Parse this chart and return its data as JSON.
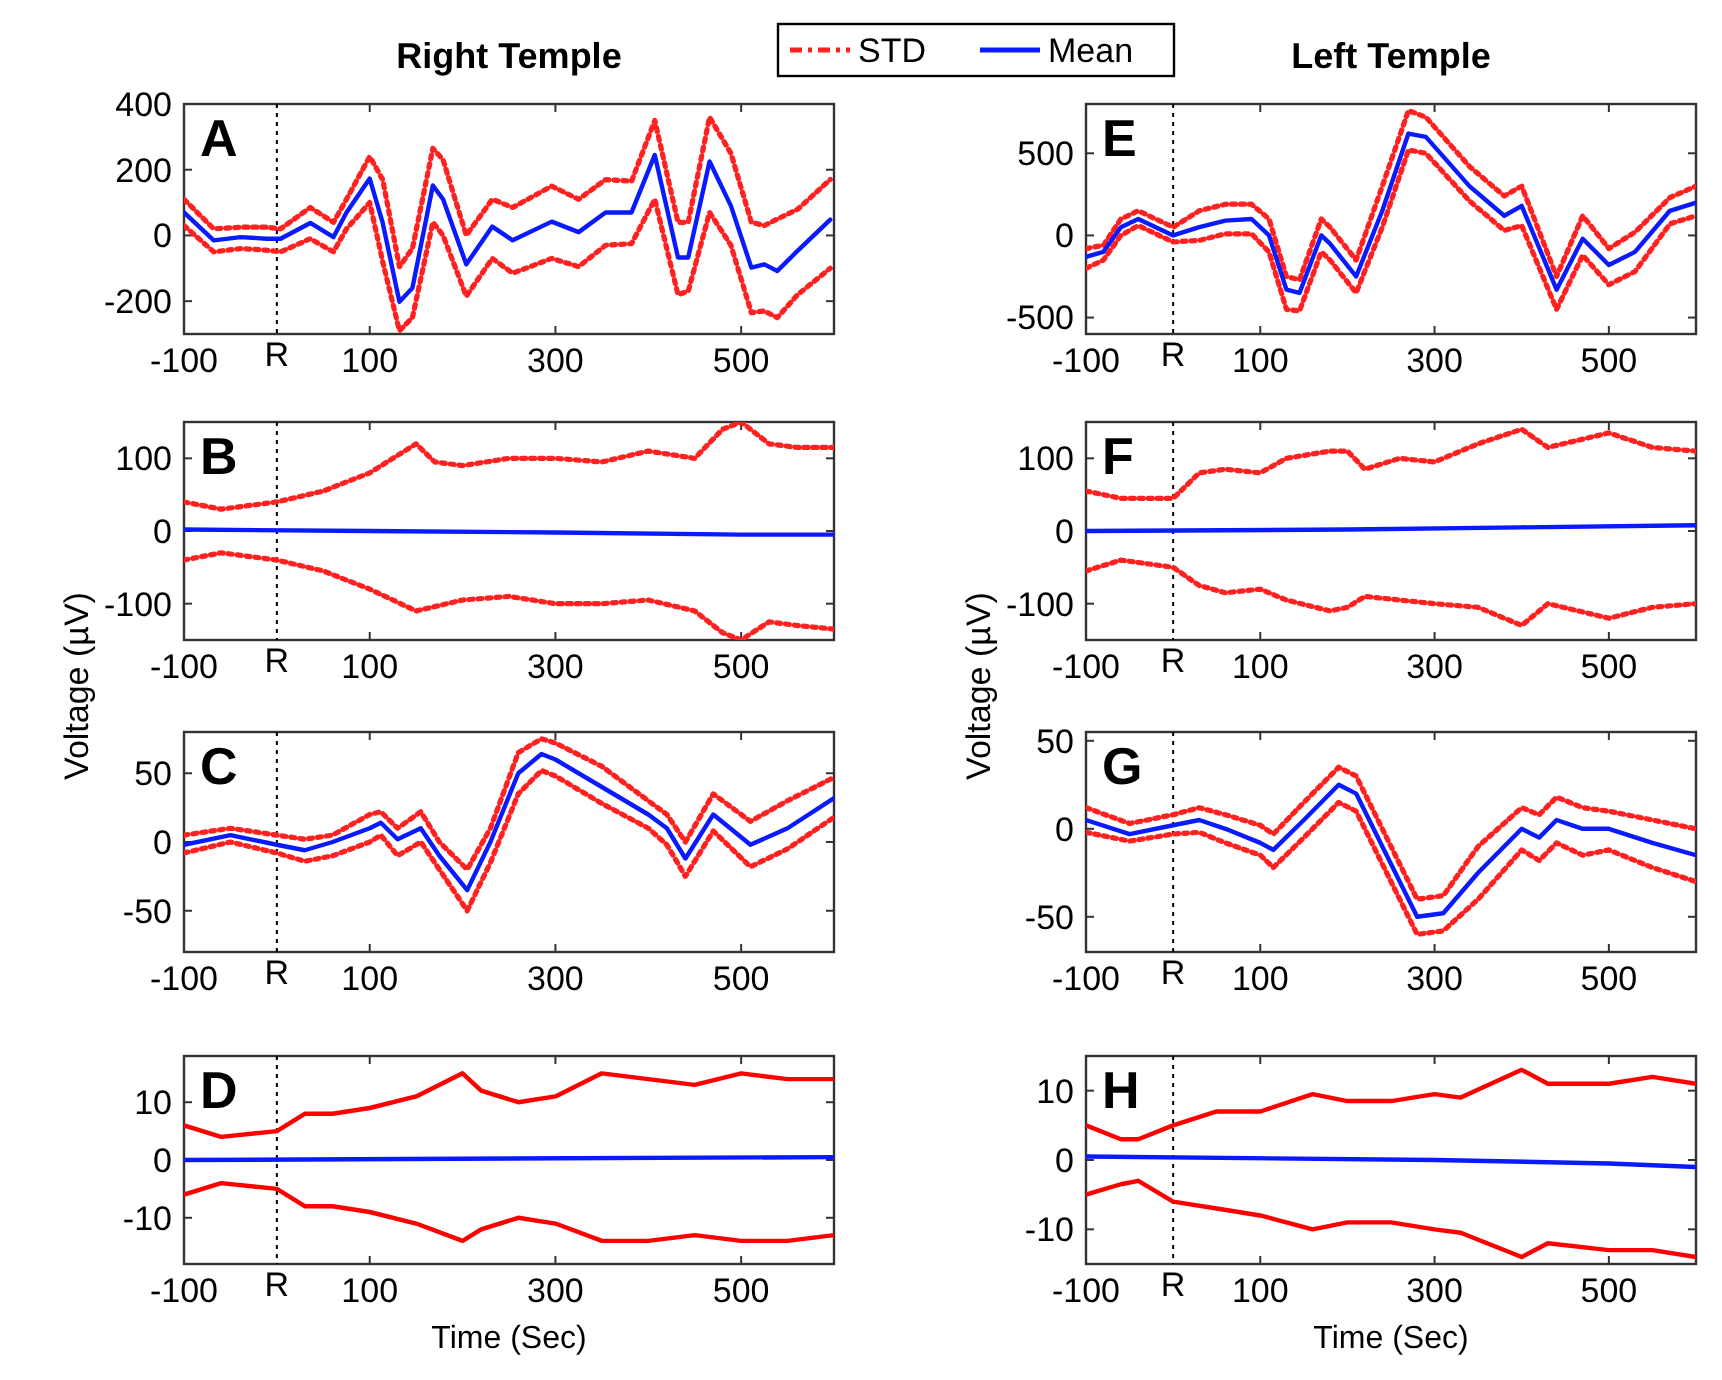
{
  "chart_data": [
    {
      "type": "line",
      "title": "Right Temple",
      "annotations": [
        "A"
      ],
      "legend": "top",
      "xlim": [
        -100,
        600
      ],
      "xticks": [
        -100,
        100,
        300,
        500
      ],
      "ylim": [
        -300,
        400
      ],
      "yticks": [
        -200,
        0,
        200,
        400
      ],
      "ref_lines": [
        {
          "axis": "x",
          "value": 0,
          "label": "R",
          "color": "#000000",
          "line_style": "dotted"
        }
      ],
      "series": [
        {
          "name": "STD",
          "color": "#ff2020",
          "line_style": "dotted",
          "x": [
            -100,
            -68,
            -39,
            -11,
            4,
            36,
            61,
            75,
            100,
            114,
            132,
            146,
            168,
            179,
            204,
            232,
            254,
            296,
            325,
            354,
            382,
            407,
            432,
            443,
            466,
            489,
            511,
            525,
            539,
            561,
            596
          ],
          "values": [
            110,
            20,
            25,
            25,
            20,
            85,
            40,
            110,
            240,
            170,
            -95,
            -40,
            265,
            230,
            0,
            110,
            85,
            150,
            110,
            170,
            165,
            350,
            40,
            40,
            360,
            250,
            40,
            30,
            50,
            80,
            170
          ]
        },
        {
          "name": "Mean",
          "color": "#0a1aff",
          "line_style": "solid",
          "x": [
            -100,
            -68,
            -39,
            -11,
            4,
            36,
            61,
            75,
            100,
            114,
            132,
            146,
            168,
            179,
            204,
            232,
            254,
            296,
            325,
            354,
            382,
            407,
            432,
            443,
            466,
            489,
            511,
            525,
            539,
            561,
            596
          ],
          "values": [
            70,
            -15,
            -5,
            -10,
            -10,
            38,
            -5,
            70,
            173,
            38,
            -202,
            -160,
            152,
            110,
            -88,
            27,
            -15,
            42,
            10,
            70,
            70,
            245,
            -67,
            -67,
            225,
            90,
            -98,
            -88,
            -108,
            -46,
            48
          ]
        },
        {
          "color": "#ff2020",
          "line_style": "dotted",
          "x": [
            -100,
            -68,
            -39,
            -11,
            4,
            36,
            61,
            75,
            100,
            114,
            132,
            146,
            168,
            179,
            204,
            232,
            254,
            296,
            325,
            354,
            382,
            407,
            432,
            443,
            466,
            489,
            511,
            525,
            539,
            561,
            596
          ],
          "values": [
            30,
            -50,
            -40,
            -45,
            -50,
            -10,
            -50,
            20,
            100,
            -80,
            -290,
            -250,
            40,
            0,
            -185,
            -70,
            -115,
            -70,
            -95,
            -30,
            -25,
            110,
            -180,
            -170,
            70,
            -30,
            -235,
            -230,
            -250,
            -180,
            -100
          ]
        }
      ]
    },
    {
      "type": "line",
      "annotations": [
        "B"
      ],
      "ylabel": "Voltage (µV)",
      "xlim": [
        -100,
        600
      ],
      "xticks": [
        -100,
        100,
        300,
        500
      ],
      "ylim": [
        -150,
        150
      ],
      "yticks": [
        -100,
        0,
        100
      ],
      "ref_lines": [
        {
          "axis": "x",
          "value": 0,
          "label": "R",
          "color": "#000000",
          "line_style": "dotted"
        }
      ],
      "series": [
        {
          "color": "#ff2020",
          "line_style": "dotted",
          "x": [
            -100,
            -60,
            0,
            50,
            100,
            150,
            170,
            200,
            250,
            300,
            350,
            400,
            450,
            480,
            500,
            530,
            560,
            600
          ],
          "values": [
            40,
            30,
            40,
            55,
            80,
            120,
            95,
            90,
            100,
            100,
            95,
            110,
            100,
            140,
            150,
            120,
            115,
            115
          ]
        },
        {
          "color": "#0a1aff",
          "line_style": "solid",
          "x": [
            -100,
            100,
            300,
            500,
            600
          ],
          "values": [
            2,
            0,
            -2,
            -5,
            -5
          ]
        },
        {
          "color": "#ff2020",
          "line_style": "dotted",
          "x": [
            -100,
            -60,
            0,
            50,
            100,
            150,
            200,
            250,
            300,
            350,
            400,
            450,
            480,
            500,
            530,
            560,
            600
          ],
          "values": [
            -40,
            -30,
            -40,
            -55,
            -80,
            -110,
            -95,
            -90,
            -100,
            -100,
            -95,
            -110,
            -140,
            -150,
            -125,
            -130,
            -135
          ]
        }
      ]
    },
    {
      "type": "line",
      "annotations": [
        "C"
      ],
      "xlim": [
        -100,
        600
      ],
      "xticks": [
        -100,
        100,
        300,
        500
      ],
      "ylim": [
        -80,
        80
      ],
      "yticks": [
        -50,
        0,
        50
      ],
      "ref_lines": [
        {
          "axis": "x",
          "value": 0,
          "label": "R",
          "color": "#000000",
          "line_style": "dotted"
        }
      ],
      "series": [
        {
          "color": "#ff2020",
          "line_style": "dotted",
          "x": [
            -100,
            -50,
            0,
            30,
            60,
            100,
            112,
            130,
            155,
            175,
            205,
            230,
            260,
            285,
            300,
            350,
            400,
            420,
            440,
            470,
            510,
            550,
            600
          ],
          "values": [
            5,
            10,
            5,
            2,
            5,
            20,
            22,
            10,
            22,
            0,
            -20,
            10,
            65,
            75,
            72,
            55,
            30,
            20,
            0,
            35,
            15,
            30,
            47
          ]
        },
        {
          "color": "#0a1aff",
          "line_style": "solid",
          "x": [
            -100,
            -50,
            0,
            30,
            60,
            100,
            112,
            130,
            155,
            175,
            205,
            230,
            260,
            285,
            300,
            350,
            400,
            420,
            440,
            470,
            510,
            550,
            600
          ],
          "values": [
            -2,
            5,
            -2,
            -6,
            0,
            10,
            14,
            2,
            10,
            -10,
            -35,
            0,
            50,
            64,
            60,
            40,
            20,
            10,
            -12,
            20,
            -2,
            10,
            32
          ]
        },
        {
          "color": "#ff2020",
          "line_style": "dotted",
          "x": [
            -100,
            -50,
            0,
            30,
            60,
            100,
            112,
            130,
            155,
            175,
            205,
            230,
            260,
            285,
            300,
            350,
            400,
            420,
            440,
            470,
            510,
            550,
            600
          ],
          "values": [
            -8,
            0,
            -8,
            -14,
            -10,
            0,
            5,
            -10,
            0,
            -20,
            -50,
            -15,
            35,
            52,
            48,
            28,
            10,
            -2,
            -25,
            8,
            -18,
            -5,
            18
          ]
        }
      ]
    },
    {
      "type": "line",
      "annotations": [
        "D"
      ],
      "xlabel": "Time (Sec)",
      "xlim": [
        -100,
        600
      ],
      "xticks": [
        -100,
        100,
        300,
        500
      ],
      "ylim": [
        -18,
        18
      ],
      "yticks": [
        -10,
        0,
        10
      ],
      "ref_lines": [
        {
          "axis": "x",
          "value": 0,
          "label": "R",
          "color": "#000000",
          "line_style": "dotted"
        }
      ],
      "series": [
        {
          "color": "#ff0000",
          "line_style": "solid",
          "x": [
            -100,
            -60,
            0,
            30,
            60,
            100,
            150,
            200,
            220,
            260,
            300,
            350,
            400,
            450,
            500,
            550,
            600
          ],
          "values": [
            6,
            4,
            5,
            8,
            8,
            9,
            11,
            15,
            12,
            10,
            11,
            15,
            14,
            13,
            15,
            14,
            14
          ]
        },
        {
          "color": "#0a1aff",
          "line_style": "solid",
          "x": [
            -100,
            600
          ],
          "values": [
            0,
            0.5
          ]
        },
        {
          "color": "#ff0000",
          "line_style": "solid",
          "x": [
            -100,
            -60,
            0,
            30,
            60,
            100,
            150,
            200,
            220,
            260,
            300,
            350,
            400,
            450,
            500,
            550,
            600
          ],
          "values": [
            -6,
            -4,
            -5,
            -8,
            -8,
            -9,
            -11,
            -14,
            -12,
            -10,
            -11,
            -14,
            -14,
            -13,
            -14,
            -14,
            -13
          ]
        }
      ]
    },
    {
      "type": "line",
      "title": "Left Temple",
      "annotations": [
        "E"
      ],
      "xlim": [
        -100,
        600
      ],
      "xticks": [
        -100,
        100,
        300,
        500
      ],
      "ylim": [
        -600,
        800
      ],
      "yticks": [
        -500,
        0,
        500
      ],
      "ref_lines": [
        {
          "axis": "x",
          "value": 0,
          "label": "R",
          "color": "#000000",
          "line_style": "dotted"
        }
      ],
      "series": [
        {
          "color": "#ff2020",
          "line_style": "dotted",
          "x": [
            -100,
            -80,
            -60,
            -40,
            0,
            30,
            60,
            90,
            110,
            130,
            145,
            170,
            180,
            210,
            240,
            270,
            290,
            340,
            380,
            400,
            440,
            470,
            500,
            530,
            570,
            600
          ],
          "values": [
            -80,
            -60,
            100,
            150,
            50,
            150,
            190,
            190,
            100,
            -250,
            -270,
            100,
            50,
            -150,
            300,
            760,
            720,
            420,
            240,
            300,
            -250,
            120,
            -80,
            20,
            230,
            300
          ]
        },
        {
          "color": "#0a1aff",
          "line_style": "solid",
          "x": [
            -100,
            -80,
            -60,
            -40,
            0,
            30,
            60,
            90,
            110,
            130,
            145,
            170,
            180,
            210,
            240,
            270,
            290,
            340,
            380,
            400,
            440,
            470,
            500,
            530,
            570,
            600
          ],
          "values": [
            -130,
            -100,
            50,
            100,
            0,
            50,
            90,
            100,
            0,
            -330,
            -350,
            0,
            -50,
            -250,
            150,
            620,
            600,
            300,
            120,
            180,
            -330,
            -20,
            -180,
            -100,
            150,
            200
          ]
        },
        {
          "color": "#ff2020",
          "line_style": "dotted",
          "x": [
            -100,
            -80,
            -60,
            -40,
            0,
            30,
            60,
            90,
            110,
            130,
            145,
            170,
            180,
            210,
            240,
            270,
            290,
            340,
            380,
            400,
            440,
            470,
            500,
            530,
            570,
            600
          ],
          "values": [
            -200,
            -150,
            0,
            60,
            -40,
            -30,
            10,
            10,
            -100,
            -450,
            -460,
            -100,
            -150,
            -350,
            50,
            520,
            500,
            210,
            30,
            60,
            -450,
            -120,
            -300,
            -220,
            70,
            120
          ]
        }
      ]
    },
    {
      "type": "line",
      "annotations": [
        "F"
      ],
      "ylabel": "Voltage (µV)",
      "xlim": [
        -100,
        600
      ],
      "xticks": [
        -100,
        100,
        300,
        500
      ],
      "ylim": [
        -150,
        150
      ],
      "yticks": [
        -100,
        0,
        100
      ],
      "ref_lines": [
        {
          "axis": "x",
          "value": 0,
          "label": "R",
          "color": "#000000",
          "line_style": "dotted"
        }
      ],
      "series": [
        {
          "color": "#ff2020",
          "line_style": "dotted",
          "x": [
            -100,
            -60,
            0,
            30,
            60,
            100,
            130,
            180,
            200,
            220,
            260,
            300,
            350,
            400,
            430,
            500,
            550,
            600
          ],
          "values": [
            55,
            45,
            45,
            80,
            85,
            80,
            100,
            110,
            110,
            85,
            100,
            95,
            120,
            140,
            115,
            135,
            115,
            110
          ]
        },
        {
          "color": "#0a1aff",
          "line_style": "solid",
          "x": [
            -100,
            200,
            400,
            600
          ],
          "values": [
            0,
            2,
            5,
            8
          ]
        },
        {
          "color": "#ff2020",
          "line_style": "dotted",
          "x": [
            -100,
            -60,
            0,
            30,
            60,
            100,
            130,
            180,
            200,
            220,
            260,
            300,
            350,
            400,
            430,
            500,
            550,
            600
          ],
          "values": [
            -55,
            -40,
            -50,
            -75,
            -85,
            -80,
            -95,
            -110,
            -105,
            -90,
            -95,
            -100,
            -105,
            -130,
            -100,
            -120,
            -105,
            -100
          ]
        }
      ]
    },
    {
      "type": "line",
      "annotations": [
        "G"
      ],
      "xlim": [
        -100,
        600
      ],
      "xticks": [
        -100,
        100,
        300,
        500
      ],
      "ylim": [
        -70,
        55
      ],
      "yticks": [
        -50,
        0,
        50
      ],
      "ref_lines": [
        {
          "axis": "x",
          "value": 0,
          "label": "R",
          "color": "#000000",
          "line_style": "dotted"
        }
      ],
      "series": [
        {
          "color": "#ff2020",
          "line_style": "dotted",
          "x": [
            -100,
            -50,
            0,
            30,
            60,
            100,
            115,
            150,
            190,
            210,
            250,
            280,
            310,
            350,
            400,
            420,
            440,
            470,
            500,
            550,
            600
          ],
          "values": [
            12,
            3,
            8,
            12,
            8,
            2,
            -3,
            15,
            35,
            30,
            -10,
            -40,
            -38,
            -10,
            12,
            8,
            18,
            12,
            10,
            5,
            0
          ]
        },
        {
          "color": "#0a1aff",
          "line_style": "solid",
          "x": [
            -100,
            -50,
            0,
            30,
            60,
            100,
            115,
            150,
            190,
            210,
            250,
            280,
            310,
            350,
            400,
            420,
            440,
            470,
            500,
            550,
            600
          ],
          "values": [
            5,
            -3,
            2,
            5,
            0,
            -8,
            -12,
            5,
            25,
            20,
            -20,
            -50,
            -48,
            -25,
            0,
            -5,
            5,
            0,
            0,
            -8,
            -15
          ]
        },
        {
          "color": "#ff2020",
          "line_style": "dotted",
          "x": [
            -100,
            -50,
            0,
            30,
            60,
            100,
            115,
            150,
            190,
            210,
            250,
            280,
            310,
            350,
            400,
            420,
            440,
            470,
            500,
            550,
            600
          ],
          "values": [
            -2,
            -7,
            -3,
            -2,
            -8,
            -15,
            -22,
            -5,
            15,
            10,
            -30,
            -60,
            -58,
            -40,
            -12,
            -18,
            -8,
            -15,
            -12,
            -22,
            -30
          ]
        }
      ]
    },
    {
      "type": "line",
      "annotations": [
        "H"
      ],
      "xlabel": "Time (Sec)",
      "xlim": [
        -100,
        600
      ],
      "xticks": [
        -100,
        100,
        300,
        500
      ],
      "ylim": [
        -15,
        15
      ],
      "yticks": [
        -10,
        0,
        10
      ],
      "ref_lines": [
        {
          "axis": "x",
          "value": 0,
          "label": "R",
          "color": "#000000",
          "line_style": "dotted"
        }
      ],
      "series": [
        {
          "color": "#ff0000",
          "line_style": "solid",
          "x": [
            -100,
            -60,
            -40,
            0,
            50,
            100,
            160,
            200,
            250,
            300,
            330,
            400,
            430,
            500,
            550,
            600
          ],
          "values": [
            5,
            3,
            3,
            5,
            7,
            7,
            9.5,
            8.5,
            8.5,
            9.5,
            9,
            13,
            11,
            11,
            12,
            11
          ]
        },
        {
          "color": "#0a1aff",
          "line_style": "solid",
          "x": [
            -100,
            300,
            500,
            600
          ],
          "values": [
            0.5,
            0,
            -0.5,
            -1
          ]
        },
        {
          "color": "#ff0000",
          "line_style": "solid",
          "x": [
            -100,
            -60,
            -40,
            0,
            50,
            100,
            160,
            200,
            250,
            300,
            330,
            400,
            430,
            500,
            550,
            600
          ],
          "values": [
            -5,
            -3.5,
            -3,
            -6,
            -7,
            -8,
            -10,
            -9,
            -9,
            -10,
            -10.5,
            -14,
            -12,
            -13,
            -13,
            -14
          ]
        }
      ]
    }
  ]
}
